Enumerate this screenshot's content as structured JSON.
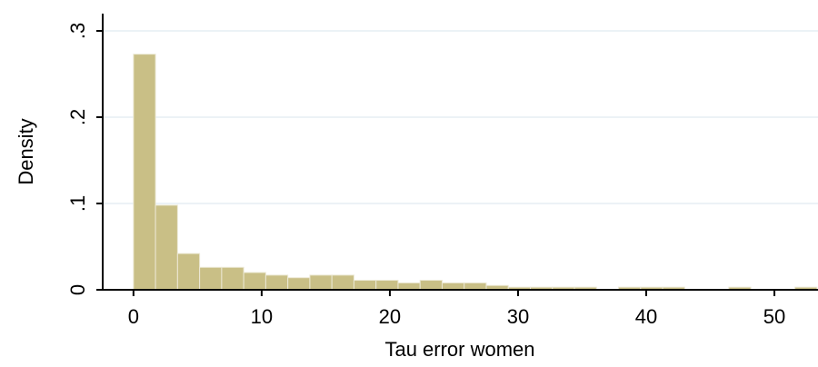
{
  "chart_data": {
    "type": "histogram",
    "xlabel": "Tau error women",
    "ylabel": "Density",
    "bins": [
      0,
      1.72,
      3.44,
      5.16,
      6.88,
      8.6,
      10.32,
      12.04,
      13.76,
      15.48,
      17.2,
      18.92,
      20.64,
      22.36,
      24.08,
      25.8,
      27.52,
      29.24,
      30.96,
      32.68,
      34.4,
      36.12,
      37.84,
      39.56,
      41.28,
      43,
      44.72,
      46.44,
      48.16,
      49.88,
      51.6,
      53.32
    ],
    "values": [
      0.273,
      0.098,
      0.042,
      0.026,
      0.026,
      0.02,
      0.017,
      0.014,
      0.017,
      0.017,
      0.011,
      0.011,
      0.008,
      0.011,
      0.008,
      0.008,
      0.005,
      0.003,
      0.003,
      0.003,
      0.003,
      0,
      0.003,
      0.003,
      0.003,
      0,
      0,
      0.003,
      0,
      0,
      0.003
    ],
    "color": "#c9bf86",
    "xlim": [
      -2.4,
      53.4
    ],
    "xticks": [
      0,
      10,
      20,
      30,
      40,
      50
    ],
    "ylim": [
      0,
      0.32
    ],
    "yticks": [
      0,
      {
        "value": 0.1,
        "label": ".1"
      },
      {
        "value": 0.2,
        "label": ".2"
      },
      {
        "value": 0.3,
        "label": ".3"
      }
    ],
    "grid": true
  }
}
